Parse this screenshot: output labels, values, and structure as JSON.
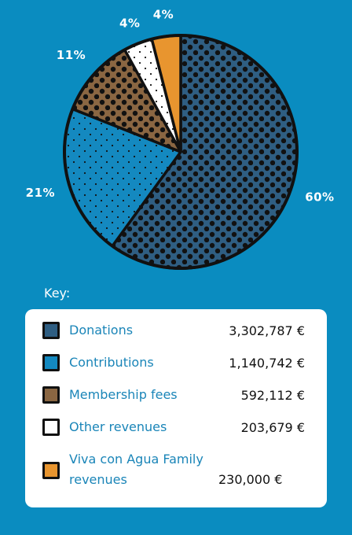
{
  "chart_data": {
    "type": "pie",
    "title": "",
    "slices": [
      {
        "label": "Donations",
        "percent": 60,
        "value": "3,302,787 €",
        "color": "#2f5e82",
        "pattern": "dots-large"
      },
      {
        "label": "Contributions",
        "percent": 21,
        "value": "1,140,742 €",
        "color": "#1489c0",
        "pattern": "dots-small"
      },
      {
        "label": "Membership fees",
        "percent": 11,
        "value": "592,112 €",
        "color": "#8a6642",
        "pattern": "dots-large"
      },
      {
        "label": "Other revenues",
        "percent": 4,
        "value": "203,679 €",
        "color": "#ffffff",
        "pattern": "dots-small"
      },
      {
        "label": "Viva con Agua Family revenues",
        "percent": 4,
        "value": "230,000 €",
        "color": "#e8952f",
        "pattern": "none"
      }
    ],
    "pct_labels": [
      "60%",
      "21%",
      "11%",
      "4%",
      "4%"
    ]
  },
  "key": {
    "title": "Key:",
    "items": [
      {
        "label": "Donations",
        "value": "3,302,787 €"
      },
      {
        "label": "Contributions",
        "value": "1,140,742 €"
      },
      {
        "label": "Membership fees",
        "value": "592,112 €"
      },
      {
        "label": "Other revenues",
        "value": "203,679 €"
      },
      {
        "label": "Viva con Agua Family revenues",
        "value": "230,000 €"
      }
    ]
  },
  "colors": {
    "background": "#0a8cc0",
    "outline": "#111111",
    "key_text": "#1a85b8"
  }
}
